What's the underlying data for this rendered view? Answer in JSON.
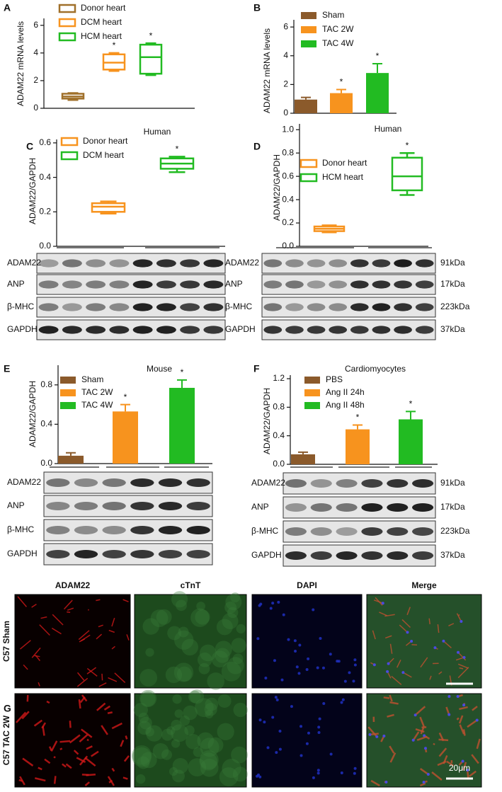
{
  "panel_labels": [
    "A",
    "B",
    "C",
    "D",
    "E",
    "F",
    "G"
  ],
  "chart_data": [
    {
      "type": "box",
      "ylabel": "ADAM22 mRNA levels",
      "ylim": [
        0,
        6.5
      ],
      "yticks": [
        0,
        2,
        4,
        6
      ],
      "boxes": [
        {
          "name": "Donor heart",
          "color": "#a0702a",
          "min": 0.6,
          "q1": 0.7,
          "median": 0.85,
          "q3": 1.05,
          "max": 1.1
        },
        {
          "name": "DCM heart",
          "color": "#f7931e",
          "min": 2.7,
          "q1": 2.8,
          "median": 3.3,
          "q3": 3.9,
          "max": 4.0
        },
        {
          "name": "HCM heart",
          "color": "#22bb22",
          "min": 2.4,
          "q1": 2.5,
          "median": 3.7,
          "q3": 4.6,
          "max": 4.7
        }
      ],
      "significance": [
        null,
        "*",
        "*"
      ]
    },
    {
      "type": "bar",
      "ylabel": "ADAM22 mRNA levels",
      "ylim": [
        0,
        6.5
      ],
      "yticks": [
        0,
        2,
        4,
        6
      ],
      "bars": [
        {
          "name": "Sham",
          "color": "#8b5a2b",
          "value": 0.95,
          "error": 0.15
        },
        {
          "name": "TAC 2W",
          "color": "#f7931e",
          "value": 1.4,
          "error": 0.25
        },
        {
          "name": "TAC 4W",
          "color": "#22bb22",
          "value": 2.8,
          "error": 0.65
        }
      ],
      "significance": [
        null,
        "*",
        "*"
      ]
    },
    {
      "type": "box",
      "title": "Human",
      "ylabel": "ADAM22/GAPDH",
      "ylim": [
        0,
        0.62
      ],
      "yticks": [
        {
          "value": 0,
          "label": "0.0"
        },
        0.2,
        0.4,
        0.6
      ],
      "boxes": [
        {
          "name": "Donor heart",
          "color": "#f7931e",
          "min": 0.19,
          "q1": 0.2,
          "median": 0.23,
          "q3": 0.25,
          "max": 0.26
        },
        {
          "name": "DCM heart",
          "color": "#22bb22",
          "min": 0.43,
          "q1": 0.45,
          "median": 0.48,
          "q3": 0.51,
          "max": 0.52
        }
      ],
      "significance": [
        null,
        "*"
      ]
    },
    {
      "type": "box",
      "title": "Human",
      "ylabel": "ADAM22/GAPDH",
      "ylim": [
        0,
        1.05
      ],
      "yticks": [
        {
          "value": 0,
          "label": "0.0"
        },
        0.2,
        0.4,
        0.6,
        0.8,
        {
          "value": 1,
          "label": "1.0"
        }
      ],
      "boxes": [
        {
          "name": "Donor heart",
          "color": "#f7931e",
          "min": 0.12,
          "q1": 0.13,
          "median": 0.15,
          "q3": 0.17,
          "max": 0.18
        },
        {
          "name": "HCM heart",
          "color": "#22bb22",
          "min": 0.44,
          "q1": 0.48,
          "median": 0.6,
          "q3": 0.76,
          "max": 0.8
        }
      ],
      "significance": [
        null,
        "*"
      ]
    },
    {
      "type": "bar",
      "title": "Mouse",
      "ylabel": "ADAM22/GAPDH",
      "ylim": [
        0,
        1.0
      ],
      "yticks": [
        {
          "value": 0,
          "label": "0.0"
        },
        0.4,
        0.8
      ],
      "bars": [
        {
          "name": "Sham",
          "color": "#8b5a2b",
          "value": 0.08,
          "error": 0.03
        },
        {
          "name": "TAC 2W",
          "color": "#f7931e",
          "value": 0.53,
          "error": 0.07
        },
        {
          "name": "TAC 4W",
          "color": "#22bb22",
          "value": 0.77,
          "error": 0.08
        }
      ],
      "significance": [
        null,
        "*",
        "*"
      ]
    },
    {
      "type": "bar",
      "title": "Cardiomyocytes",
      "ylabel": "ADAM22/GAPDH",
      "ylim": [
        0,
        1.25
      ],
      "yticks": [
        {
          "value": 0,
          "label": "0.0"
        },
        0.4,
        0.8,
        1.2
      ],
      "bars": [
        {
          "name": "PBS",
          "color": "#8b5a2b",
          "value": 0.14,
          "error": 0.03
        },
        {
          "name": "Ang II 24h",
          "color": "#f7931e",
          "value": 0.49,
          "error": 0.06
        },
        {
          "name": "Ang II 48h",
          "color": "#22bb22",
          "value": 0.63,
          "error": 0.11
        }
      ],
      "significance": [
        null,
        "*",
        "*"
      ]
    }
  ],
  "blots": [
    {
      "rows": [
        "ADAM22",
        "ANP",
        "β-MHC",
        "GAPDH"
      ]
    },
    {
      "rows": [
        "ADAM22",
        "ANP",
        "β-MHC",
        "GAPDH"
      ],
      "sizes": [
        "91kDa",
        "17kDa",
        "223kDa",
        "37kDa"
      ]
    },
    {
      "rows": [
        "ADAM22",
        "ANP",
        "β-MHC",
        "GAPDH"
      ]
    },
    {
      "rows": [
        "ADAM22",
        "ANP",
        "β-MHC",
        "GAPDH"
      ],
      "sizes": [
        "91kDa",
        "17kDa",
        "223kDa",
        "37kDa"
      ]
    }
  ],
  "panel_g": {
    "columns": [
      "ADAM22",
      "cTnT",
      "DAPI",
      "Merge"
    ],
    "rows": [
      "C57 Sham",
      "C57 TAC 2W"
    ],
    "scale_bar": "20μm"
  }
}
